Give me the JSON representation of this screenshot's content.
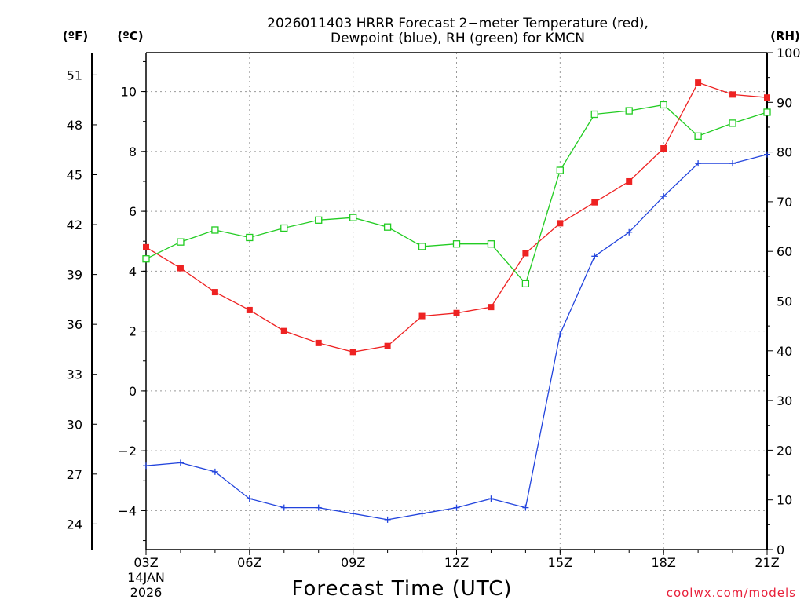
{
  "colors": {
    "temperature": "#ee2222",
    "dewpoint": "#2244dd",
    "rh": "#22cc22",
    "credit": "#e8203a",
    "grid": "#999999"
  },
  "chart_data": {
    "type": "line",
    "title_line1": "2026011403 HRRR Forecast 2−meter Temperature (red),",
    "title_line2": "Dewpoint (blue), RH (green) for KMCN",
    "xlabel": "Forecast Time (UTC)",
    "credit": "coolwx.com/models",
    "x_hours": [
      3,
      4,
      5,
      6,
      7,
      8,
      9,
      10,
      11,
      12,
      13,
      14,
      15,
      16,
      17,
      18,
      19,
      20,
      21
    ],
    "x_ticks": [
      {
        "hour": 3,
        "label": "03Z"
      },
      {
        "hour": 6,
        "label": "06Z"
      },
      {
        "hour": 9,
        "label": "09Z"
      },
      {
        "hour": 12,
        "label": "12Z"
      },
      {
        "hour": 15,
        "label": "15Z"
      },
      {
        "hour": 18,
        "label": "18Z"
      },
      {
        "hour": 21,
        "label": "21Z"
      }
    ],
    "date_line1": "14JAN",
    "date_line2": "2026",
    "x_range": [
      3,
      21
    ],
    "units": {
      "fahrenheit": "(ºF)",
      "celsius": "(ºC)",
      "rh": "(RH)"
    },
    "celsius_axis": {
      "range": [
        -5.3,
        11.3
      ],
      "ticks": [
        10,
        8,
        6,
        4,
        2,
        0,
        -2,
        -4
      ],
      "tick_labels": [
        "10",
        "8",
        "6",
        "4",
        "2",
        "0",
        "−2",
        "−4"
      ]
    },
    "fahrenheit_axis": {
      "ticks": [
        51,
        48,
        45,
        42,
        39,
        36,
        33,
        30,
        27,
        24
      ],
      "tick_labels": [
        "51",
        "48",
        "45",
        "42",
        "39",
        "36",
        "33",
        "30",
        "27",
        "24"
      ]
    },
    "rh_axis": {
      "range": [
        0,
        100
      ],
      "ticks": [
        100,
        90,
        80,
        70,
        60,
        50,
        40,
        30,
        20,
        10,
        0
      ],
      "tick_labels": [
        "100",
        "90",
        "80",
        "70",
        "60",
        "50",
        "40",
        "30",
        "20",
        "10",
        "0"
      ]
    },
    "series": [
      {
        "name": "Temperature (°C)",
        "axis": "celsius",
        "marker": "filled-square",
        "values": [
          4.8,
          4.1,
          3.3,
          2.7,
          2.0,
          1.6,
          1.3,
          1.5,
          2.5,
          2.6,
          2.8,
          4.6,
          5.6,
          6.3,
          7.0,
          8.1,
          10.3,
          9.9,
          9.8
        ]
      },
      {
        "name": "Dewpoint (°C)",
        "axis": "celsius",
        "marker": "plus",
        "values": [
          -2.5,
          -2.4,
          -2.7,
          -3.6,
          -3.9,
          -3.9,
          -4.1,
          -4.3,
          -4.1,
          -3.9,
          -3.6,
          -3.9,
          1.9,
          4.5,
          5.3,
          6.5,
          7.6,
          7.6,
          7.9
        ]
      },
      {
        "name": "RH (%)",
        "axis": "rh",
        "marker": "open-square",
        "values": [
          58.5,
          61.9,
          64.3,
          62.8,
          64.7,
          66.3,
          66.8,
          64.9,
          61.0,
          61.5,
          61.5,
          53.5,
          76.3,
          87.6,
          88.3,
          89.5,
          83.2,
          85.8,
          88.0
        ]
      }
    ],
    "grid": true
  }
}
